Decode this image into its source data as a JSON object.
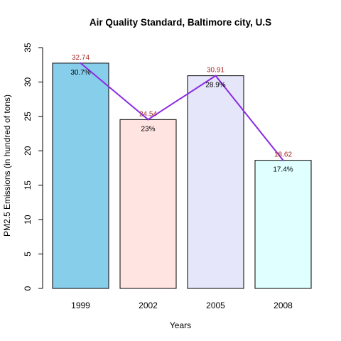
{
  "chart_data": {
    "type": "bar",
    "title": "Air Quality Standard, Baltimore city, U.S",
    "xlabel": "Years",
    "ylabel": "PM2.5 Emissions (in hundred of tons)",
    "categories": [
      "1999",
      "2002",
      "2005",
      "2008"
    ],
    "values": [
      32.74,
      24.54,
      30.91,
      18.62
    ],
    "value_labels": [
      "32.74",
      "24.54",
      "30.91",
      "18.62"
    ],
    "percent_labels": [
      "30.7%",
      "23%",
      "28.9%",
      "17.4%"
    ],
    "bar_colors": [
      "#87ceeb",
      "#ffe4e1",
      "#e6e6fa",
      "#e0ffff"
    ],
    "line_color": "#8a2be2",
    "value_label_color": "#a52a2a",
    "ylim": [
      0,
      35
    ],
    "yticks": [
      0,
      5,
      10,
      15,
      20,
      25,
      30,
      35
    ],
    "grid": false,
    "overlay": "line"
  }
}
